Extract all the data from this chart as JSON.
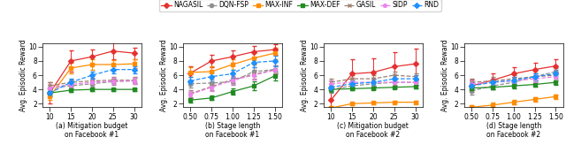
{
  "legend_labels": [
    "NAGASIL",
    "DQN-FSP",
    "MAX-INF",
    "MAX-DEF",
    "GASIL",
    "SIDP",
    "RND"
  ],
  "subplot_a": {
    "x": [
      10,
      15,
      20,
      25,
      30
    ],
    "xlabel": "(a) Mitigation budget\non Facebook #1",
    "ylabel": "Avg. Episodic Reward",
    "ylim": [
      1.5,
      10.5
    ],
    "yticks": [
      2,
      4,
      6,
      8,
      10
    ],
    "series": {
      "NAGASIL": {
        "y": [
          3.5,
          8.0,
          8.6,
          9.4,
          9.1
        ],
        "yerr": [
          1.5,
          1.5,
          1.0,
          1.2,
          0.8
        ]
      },
      "DQN-FSP": {
        "y": [
          4.2,
          4.5,
          4.8,
          5.1,
          5.2
        ],
        "yerr": [
          0.4,
          0.5,
          0.4,
          0.4,
          0.4
        ]
      },
      "MAX-INF": {
        "y": [
          3.0,
          7.0,
          7.5,
          7.5,
          7.6
        ],
        "yerr": [
          0.5,
          0.8,
          0.7,
          0.6,
          0.6
        ]
      },
      "MAX-DEF": {
        "y": [
          3.5,
          3.9,
          4.0,
          4.0,
          4.0
        ],
        "yerr": [
          0.3,
          0.3,
          0.2,
          0.2,
          0.2
        ]
      },
      "GASIL": {
        "y": [
          4.5,
          5.0,
          5.2,
          5.3,
          5.3
        ],
        "yerr": [
          0.5,
          0.4,
          0.4,
          0.4,
          0.4
        ]
      },
      "SIDP": {
        "y": [
          4.2,
          4.7,
          5.0,
          5.2,
          5.2
        ],
        "yerr": [
          0.5,
          0.4,
          0.4,
          0.4,
          0.4
        ]
      },
      "RND": {
        "y": [
          3.5,
          5.0,
          6.0,
          6.8,
          6.8
        ],
        "yerr": [
          0.5,
          0.5,
          0.5,
          0.5,
          0.5
        ]
      }
    }
  },
  "subplot_b": {
    "x": [
      0.5,
      0.75,
      1.0,
      1.25,
      1.5
    ],
    "xlabel": "(b) Stage length\non Facebook #1",
    "ylabel": "Avg. Episodic Reward",
    "ylim": [
      1.5,
      10.5
    ],
    "yticks": [
      2,
      4,
      6,
      8,
      10
    ],
    "series": {
      "NAGASIL": {
        "y": [
          6.3,
          8.0,
          8.6,
          9.3,
          9.6
        ],
        "yerr": [
          1.0,
          0.9,
          0.9,
          0.8,
          0.7
        ]
      },
      "DQN-FSP": {
        "y": [
          4.8,
          4.9,
          5.1,
          6.5,
          6.8
        ],
        "yerr": [
          0.5,
          0.5,
          0.5,
          0.6,
          0.6
        ]
      },
      "MAX-INF": {
        "y": [
          6.4,
          6.5,
          7.5,
          8.4,
          9.1
        ],
        "yerr": [
          0.7,
          0.7,
          0.8,
          0.9,
          0.8
        ]
      },
      "MAX-DEF": {
        "y": [
          2.5,
          2.8,
          3.7,
          4.5,
          5.9
        ],
        "yerr": [
          0.3,
          0.3,
          0.4,
          0.6,
          0.6
        ]
      },
      "GASIL": {
        "y": [
          3.4,
          4.4,
          5.4,
          6.1,
          6.8
        ],
        "yerr": [
          0.5,
          0.5,
          0.5,
          0.6,
          0.6
        ]
      },
      "SIDP": {
        "y": [
          3.3,
          4.3,
          5.3,
          6.0,
          6.7
        ],
        "yerr": [
          0.5,
          0.5,
          0.5,
          0.6,
          0.6
        ]
      },
      "RND": {
        "y": [
          5.2,
          5.8,
          6.2,
          7.8,
          8.0
        ],
        "yerr": [
          0.6,
          0.6,
          0.6,
          0.7,
          0.7
        ]
      }
    }
  },
  "subplot_c": {
    "x": [
      10,
      15,
      20,
      25,
      30
    ],
    "xlabel": "(c) Mitigation budget\non Facebook #2",
    "ylabel": "Avg. Episodic Reward",
    "ylim": [
      1.5,
      10.5
    ],
    "yticks": [
      2,
      4,
      6,
      8,
      10
    ],
    "series": {
      "NAGASIL": {
        "y": [
          2.5,
          6.2,
          6.4,
          7.2,
          7.6
        ],
        "yerr": [
          1.5,
          2.0,
          2.0,
          2.0,
          2.2
        ]
      },
      "DQN-FSP": {
        "y": [
          4.0,
          4.5,
          4.8,
          5.0,
          5.0
        ],
        "yerr": [
          0.5,
          0.5,
          0.4,
          0.4,
          0.4
        ]
      },
      "MAX-INF": {
        "y": [
          1.4,
          2.0,
          2.1,
          2.2,
          2.2
        ],
        "yerr": [
          0.2,
          0.2,
          0.2,
          0.2,
          0.2
        ]
      },
      "MAX-DEF": {
        "y": [
          4.0,
          4.1,
          4.2,
          4.3,
          4.4
        ],
        "yerr": [
          0.3,
          0.2,
          0.2,
          0.2,
          0.2
        ]
      },
      "GASIL": {
        "y": [
          5.0,
          5.5,
          5.5,
          6.0,
          5.8
        ],
        "yerr": [
          0.5,
          0.5,
          0.5,
          0.5,
          0.5
        ]
      },
      "SIDP": {
        "y": [
          4.8,
          5.0,
          5.0,
          5.0,
          5.0
        ],
        "yerr": [
          0.5,
          0.5,
          0.5,
          0.5,
          0.5
        ]
      },
      "RND": {
        "y": [
          4.3,
          4.8,
          5.0,
          5.5,
          5.5
        ],
        "yerr": [
          0.5,
          0.5,
          0.5,
          0.5,
          0.5
        ]
      }
    }
  },
  "subplot_d": {
    "x": [
      0.5,
      0.75,
      1.0,
      1.25,
      1.5
    ],
    "xlabel": "(d) Stage length\non Facebook #2",
    "ylabel": "Avg. Episodic Reward",
    "ylim": [
      1.5,
      10.5
    ],
    "yticks": [
      2,
      4,
      6,
      8,
      10
    ],
    "series": {
      "NAGASIL": {
        "y": [
          4.5,
          5.3,
          6.2,
          6.8,
          7.3
        ],
        "yerr": [
          0.9,
          0.9,
          0.9,
          0.9,
          0.9
        ]
      },
      "DQN-FSP": {
        "y": [
          3.8,
          4.5,
          5.0,
          5.8,
          6.5
        ],
        "yerr": [
          0.5,
          0.5,
          0.5,
          0.5,
          0.5
        ]
      },
      "MAX-INF": {
        "y": [
          1.5,
          1.8,
          2.2,
          2.6,
          3.0
        ],
        "yerr": [
          0.3,
          0.3,
          0.3,
          0.3,
          0.3
        ]
      },
      "MAX-DEF": {
        "y": [
          4.2,
          4.3,
          4.5,
          4.7,
          5.0
        ],
        "yerr": [
          0.3,
          0.3,
          0.3,
          0.3,
          0.3
        ]
      },
      "GASIL": {
        "y": [
          5.0,
          5.2,
          5.5,
          5.8,
          6.0
        ],
        "yerr": [
          0.5,
          0.5,
          0.5,
          0.5,
          0.5
        ]
      },
      "SIDP": {
        "y": [
          4.8,
          5.0,
          5.2,
          5.5,
          5.8
        ],
        "yerr": [
          0.5,
          0.5,
          0.5,
          0.5,
          0.5
        ]
      },
      "RND": {
        "y": [
          4.5,
          5.0,
          5.3,
          5.8,
          6.2
        ],
        "yerr": [
          0.5,
          0.5,
          0.5,
          0.5,
          0.5
        ]
      }
    }
  },
  "series_styles": {
    "NAGASIL": {
      "color": "#e63030",
      "marker": "D",
      "linestyle": "-"
    },
    "DQN-FSP": {
      "color": "#909090",
      "marker": "o",
      "linestyle": "--"
    },
    "MAX-INF": {
      "color": "#ff8c00",
      "marker": "s",
      "linestyle": "-"
    },
    "MAX-DEF": {
      "color": "#228B22",
      "marker": "s",
      "linestyle": "-"
    },
    "GASIL": {
      "color": "#a08070",
      "marker": "x",
      "linestyle": "--"
    },
    "SIDP": {
      "color": "#ee82ee",
      "marker": "p",
      "linestyle": "--"
    },
    "RND": {
      "color": "#1e90ff",
      "marker": "D",
      "linestyle": "--"
    }
  }
}
